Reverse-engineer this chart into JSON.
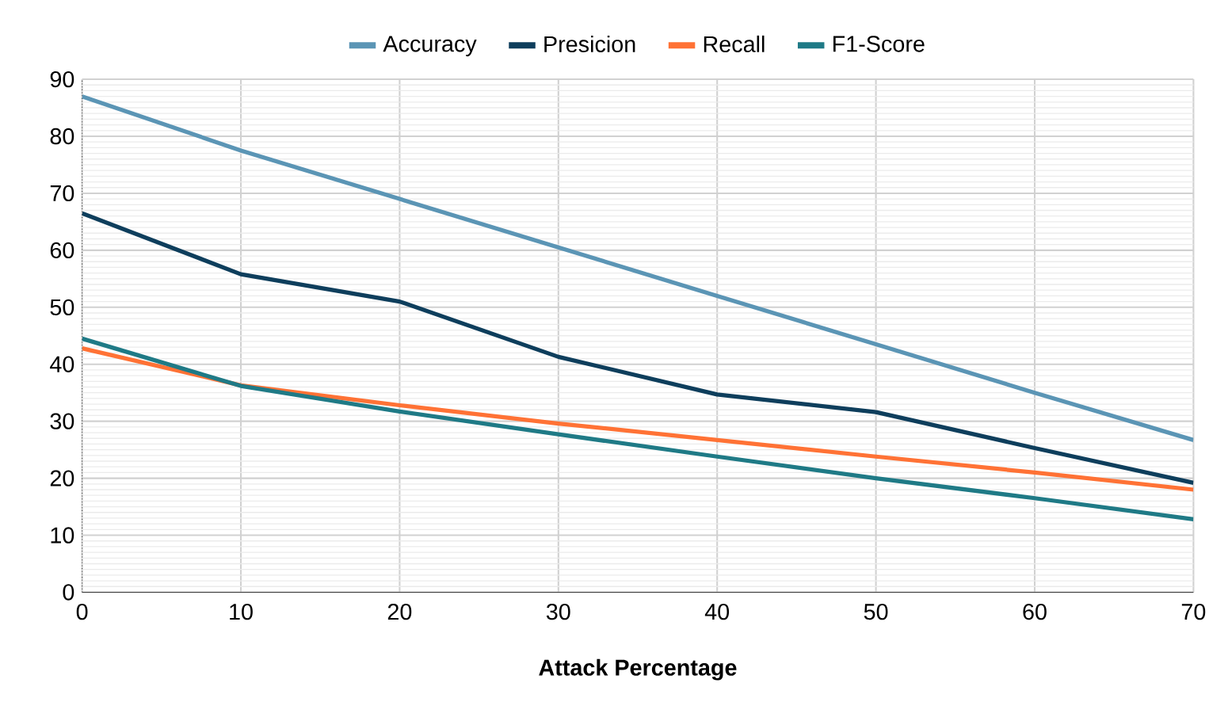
{
  "chart_data": {
    "type": "line",
    "xlabel": "Attack Percentage",
    "x": [
      0,
      10,
      20,
      30,
      40,
      50,
      60,
      70
    ],
    "series": [
      {
        "name": "Accuracy",
        "color": "#5b95b5",
        "values": [
          87,
          77.5,
          69,
          60.5,
          52,
          43.5,
          35,
          26.7
        ]
      },
      {
        "name": "Presicion",
        "color": "#0e3e5c",
        "values": [
          66.5,
          55.8,
          51,
          41.3,
          34.7,
          31.6,
          25.3,
          19.2
        ]
      },
      {
        "name": "Recall",
        "color": "#ff7235",
        "values": [
          42.8,
          36.3,
          32.8,
          29.6,
          26.7,
          23.8,
          21,
          18
        ]
      },
      {
        "name": "F1-Score",
        "color": "#1f7a86",
        "values": [
          44.5,
          36.2,
          31.7,
          27.7,
          23.8,
          20,
          16.5,
          12.8
        ]
      }
    ],
    "xlim": [
      0,
      70
    ],
    "ylim": [
      0,
      90
    ],
    "xticks": [
      0,
      10,
      20,
      30,
      40,
      50,
      60,
      70
    ],
    "yticks": [
      0,
      10,
      20,
      30,
      40,
      50,
      60,
      70,
      80,
      90
    ],
    "grid": true,
    "legend": "top",
    "marker": "none",
    "line_style": "solid"
  }
}
